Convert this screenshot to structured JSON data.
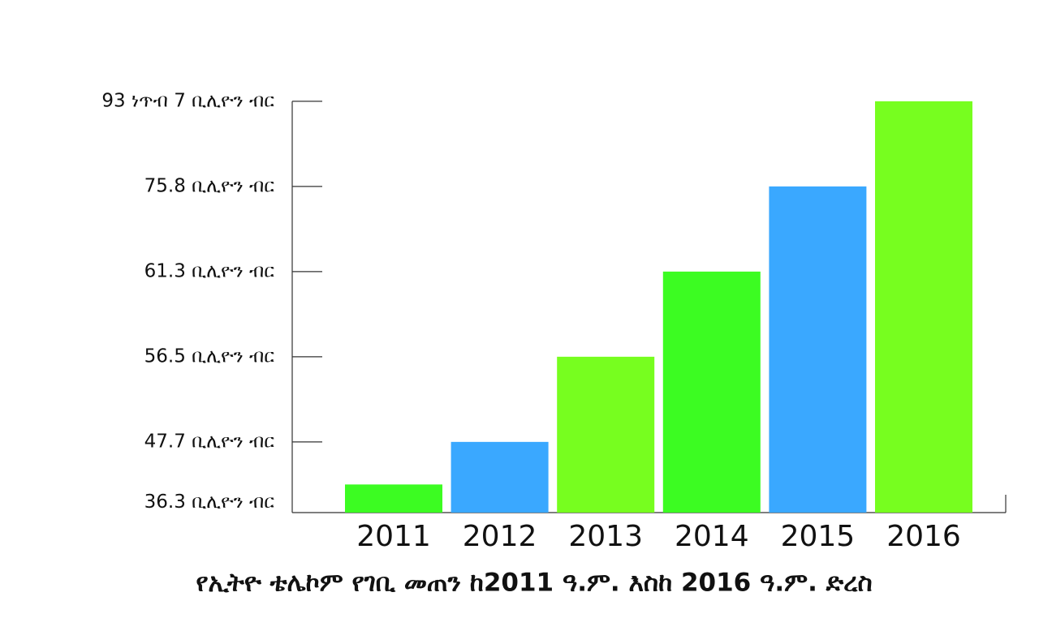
{
  "chart_data": {
    "type": "bar",
    "title": "የኢትዮ ቴሌኮም የገቢ መጠን ከ2011 ዓ.ም. እስከ 2016 ዓ.ም. ድረስ",
    "categories": [
      "2011",
      "2012",
      "2013",
      "2014",
      "2015",
      "2016"
    ],
    "values": [
      36.3,
      47.7,
      56.5,
      61.3,
      75.8,
      93.7
    ],
    "colors": [
      "#3cfc22",
      "#3aa8ff",
      "#77fe1f",
      "#3cfc22",
      "#3aa8ff",
      "#77fe1f"
    ],
    "ylim": [
      30,
      93.7
    ],
    "yticks": [
      {
        "value": 36.3,
        "label": "36.3 ቢሊዮን ብር"
      },
      {
        "value": 47.7,
        "label": "47.7 ቢሊዮን ብር"
      },
      {
        "value": 56.5,
        "label": "56.5 ቢሊዮን ብር"
      },
      {
        "value": 61.3,
        "label": "61.3 ቢሊዮን ብር"
      },
      {
        "value": 75.8,
        "label": "75.8 ቢሊዮን ብር"
      },
      {
        "value": 93.7,
        "label": "93 ነጥብ 7 ቢሊዮን ብር"
      }
    ]
  }
}
